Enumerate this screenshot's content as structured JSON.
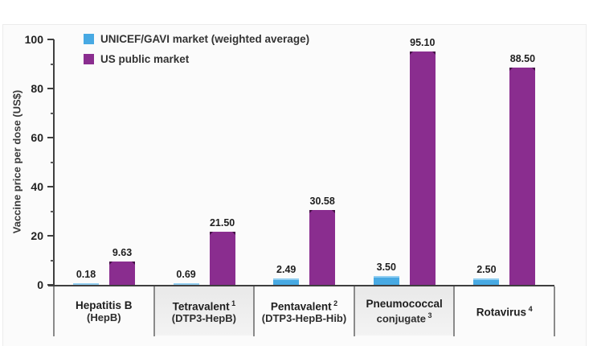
{
  "chart_data": {
    "type": "bar",
    "title": "",
    "ylabel": "Vaccine price per dose (US$)",
    "ylim": [
      0,
      100
    ],
    "y_major_ticks": [
      0,
      20,
      40,
      60,
      80,
      100
    ],
    "y_minor_ticks": [
      10,
      30,
      50,
      70,
      90
    ],
    "grid": false,
    "legend_position": "top-left-inside",
    "categories": [
      {
        "line1": "Hepatitis B",
        "sup1": "",
        "line2": "(HepB)",
        "sup2": "",
        "shaded": false
      },
      {
        "line1": "Tetravalent",
        "sup1": "1",
        "line2": "(DTP3-HepB)",
        "sup2": "",
        "shaded": true
      },
      {
        "line1": "Pentavalent",
        "sup1": "2",
        "line2": "(DTP3-HepB-Hib)",
        "sup2": "",
        "shaded": false
      },
      {
        "line1": "Pneumococcal",
        "sup1": "",
        "line2": "conjugate",
        "sup2": "3",
        "shaded": true
      },
      {
        "line1": "Rotavirus",
        "sup1": "4",
        "line2": "",
        "sup2": "",
        "shaded": false
      }
    ],
    "series": [
      {
        "name": "UNICEF/GAVI market (weighted average)",
        "color": "#47a9e3",
        "values": [
          0.18,
          0.69,
          2.49,
          3.5,
          2.5
        ],
        "value_labels": [
          "0.18",
          "0.69",
          "2.49",
          "3.50",
          "2.50"
        ]
      },
      {
        "name": "US public market",
        "color": "#8a2d8f",
        "values": [
          9.63,
          21.5,
          30.58,
          95.1,
          88.5
        ],
        "value_labels": [
          "9.63",
          "21.50",
          "30.58",
          "95.10",
          "88.50"
        ]
      }
    ]
  },
  "colors": {
    "axis": "#3f3f3f",
    "panel_background": "#fbfbfb",
    "shaded_category_background": "#e9e9e9",
    "unicef_bar": "#47a9e3",
    "us_bar": "#8a2d8f"
  }
}
